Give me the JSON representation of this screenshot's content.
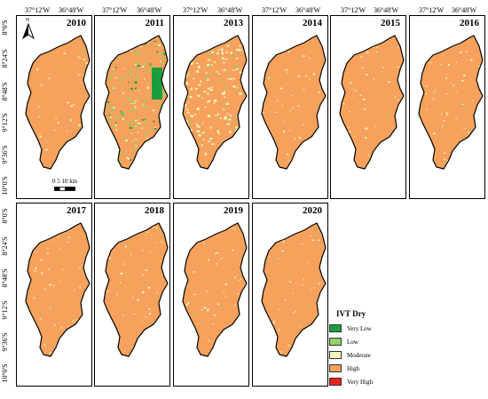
{
  "longitude_labels": [
    "37°12'W",
    "36°48'W"
  ],
  "latitude_labels": [
    "8°0'S",
    "8°24'S",
    "8°48'S",
    "9°12'S",
    "9°36'S",
    "10°0'S"
  ],
  "north_arrow": {
    "label": "N",
    "icon": "north-arrow-icon"
  },
  "scale_bar": {
    "label": "0   5  10 km"
  },
  "panels": [
    {
      "year": "2010",
      "dominant": "high"
    },
    {
      "year": "2011",
      "dominant": "high-mixed-low"
    },
    {
      "year": "2013",
      "dominant": "moderate-high"
    },
    {
      "year": "2014",
      "dominant": "high"
    },
    {
      "year": "2015",
      "dominant": "high"
    },
    {
      "year": "2016",
      "dominant": "high"
    },
    {
      "year": "2017",
      "dominant": "high"
    },
    {
      "year": "2018",
      "dominant": "high"
    },
    {
      "year": "2019",
      "dominant": "high"
    },
    {
      "year": "2020",
      "dominant": "high"
    }
  ],
  "legend": {
    "title": "IVT Dry",
    "items": [
      {
        "label": "Very Low",
        "color": "#1a9d3c"
      },
      {
        "label": "Low",
        "color": "#8ed26a"
      },
      {
        "label": "Moderate",
        "color": "#f6f5be"
      },
      {
        "label": "High",
        "color": "#f6a25c"
      },
      {
        "label": "Very High",
        "color": "#e8211e"
      }
    ]
  }
}
